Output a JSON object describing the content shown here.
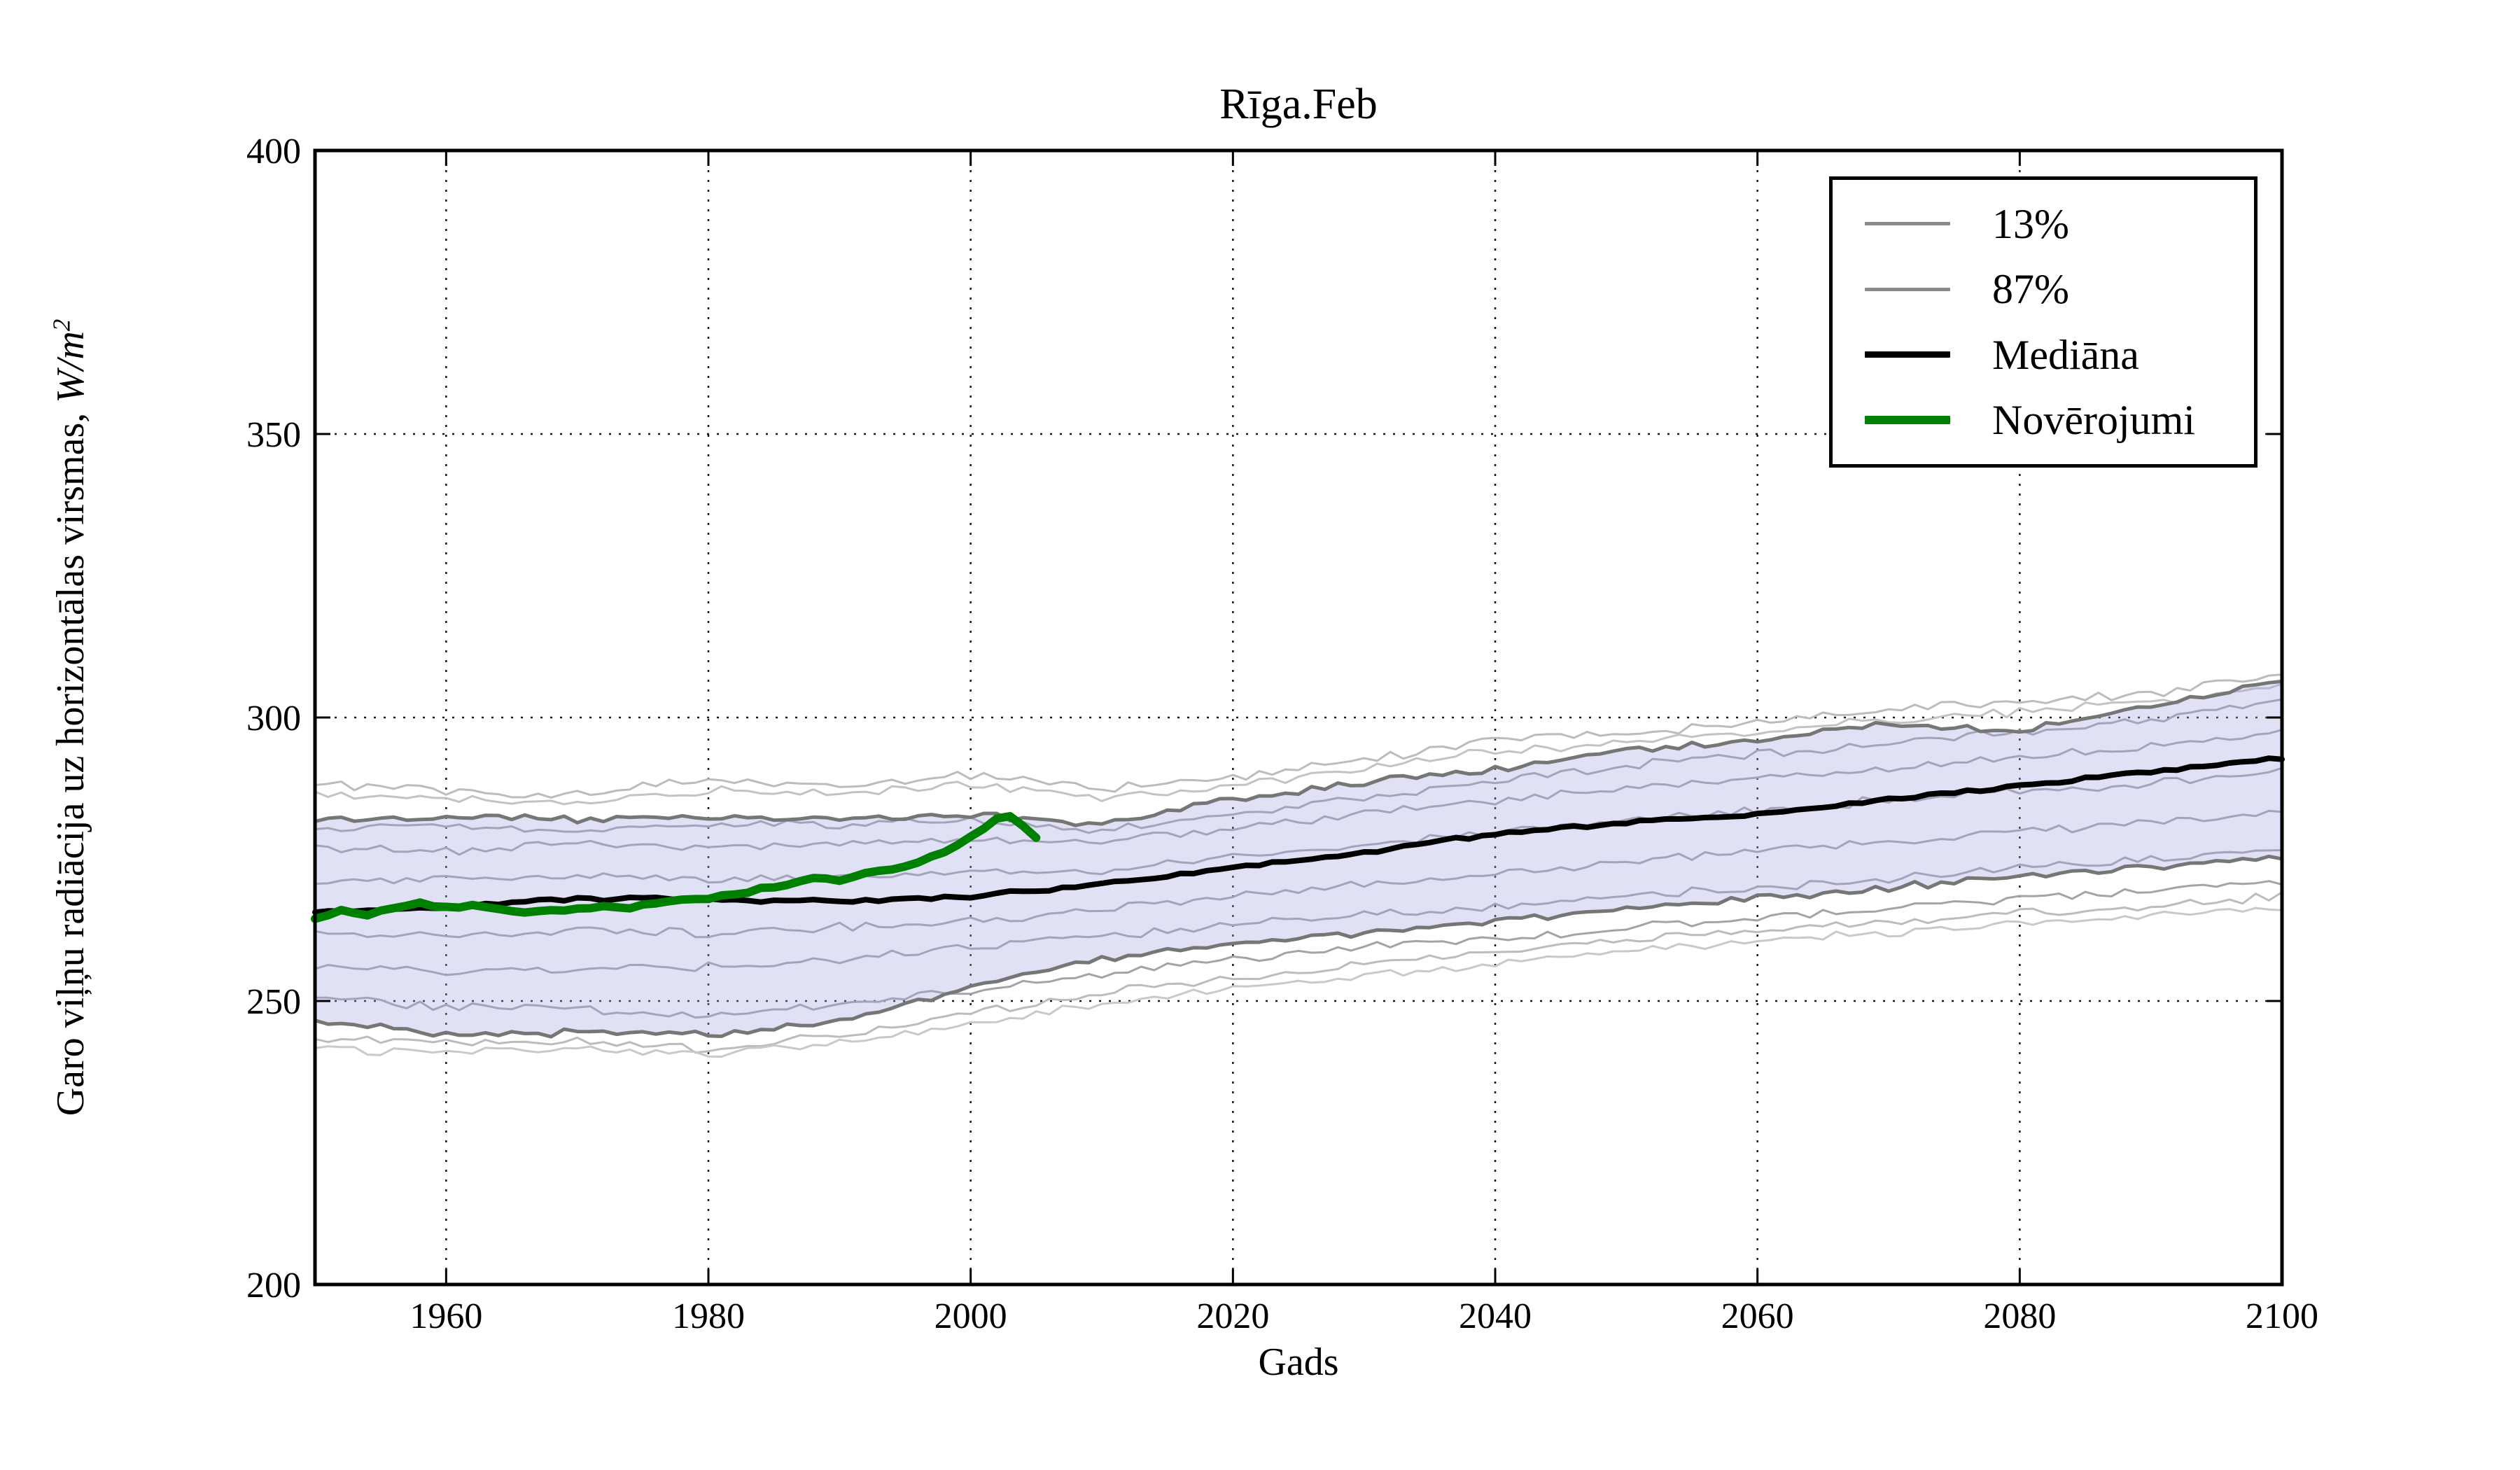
{
  "chart_data": {
    "type": "line",
    "title": "Rīga.Feb",
    "xlabel": "Gads",
    "ylabel": "Garo viļņu radiācija uz horizontālas virsmas, W/m2",
    "ylabel_text": "Garo viļņu radiācija uz horizontālas virsmas, ",
    "ylabel_unit": "W/m",
    "ylabel_exponent": "2",
    "xlim": [
      1950,
      2100
    ],
    "ylim": [
      200,
      400
    ],
    "x_ticks": [
      1960,
      1980,
      2000,
      2020,
      2040,
      2060,
      2080,
      2100
    ],
    "y_ticks": [
      200,
      250,
      300,
      350,
      400
    ],
    "grid": true,
    "legend_position": "upper right",
    "band": {
      "between": [
        "13%",
        "87%"
      ],
      "fill_color": "#a5a5e0",
      "fill_opacity": 0.33
    },
    "anchor_years": [
      1950,
      1960,
      1970,
      1980,
      1990,
      2000,
      2010,
      2020,
      2030,
      2040,
      2050,
      2060,
      2070,
      2080,
      2090,
      2100
    ],
    "series": [
      {
        "name": "ensemble-member-1",
        "role": "ensemble",
        "color": "#bcbcbc",
        "linewidth": 3,
        "jitter": 1.2,
        "values": [
          288.5,
          287,
          286.5,
          289,
          288,
          290,
          287.5,
          289.5,
          292.5,
          296,
          297,
          299,
          301.5,
          303,
          304,
          307.5
        ]
      },
      {
        "name": "ensemble-member-2",
        "role": "ensemble",
        "color": "#c3c3c3",
        "linewidth": 3,
        "jitter": 1.2,
        "values": [
          286.5,
          285.5,
          285,
          287,
          286.5,
          288,
          286,
          288,
          291,
          294,
          295.5,
          297.5,
          299.5,
          301,
          302.5,
          305.5
        ]
      },
      {
        "name": "ensemble-member-3",
        "role": "ensemble",
        "color": "#a3a3ab",
        "linewidth": 3,
        "jitter": 1.2,
        "values": [
          280.5,
          281,
          280,
          281.5,
          281,
          282,
          280,
          283,
          286,
          289,
          291.5,
          293.5,
          295.5,
          297.5,
          299.5,
          303
        ]
      },
      {
        "name": "ensemble-member-4",
        "role": "ensemble",
        "color": "#a3a3ab",
        "linewidth": 3,
        "jitter": 1.2,
        "values": [
          277,
          276.5,
          277.5,
          277,
          277.5,
          278.5,
          278,
          280.5,
          283,
          285.5,
          287.5,
          289.5,
          291,
          293,
          295,
          297.5
        ]
      },
      {
        "name": "ensemble-member-5",
        "role": "ensemble",
        "color": "#a3a3ab",
        "linewidth": 3,
        "jitter": 1.2,
        "values": [
          271,
          271.5,
          272,
          271.5,
          272,
          272.5,
          273,
          275.5,
          277.5,
          280,
          282,
          283.5,
          285.5,
          287,
          288.5,
          290.5
        ]
      },
      {
        "name": "ensemble-member-6",
        "role": "ensemble",
        "color": "#a3a3ab",
        "linewidth": 3,
        "jitter": 1.2,
        "values": [
          262,
          261.5,
          262.5,
          262,
          263,
          264,
          266,
          268.5,
          270.5,
          272.5,
          274.5,
          276.5,
          278,
          280,
          281.5,
          283.5
        ]
      },
      {
        "name": "ensemble-member-7",
        "role": "ensemble",
        "color": "#a3a3ab",
        "linewidth": 3,
        "jitter": 1.2,
        "values": [
          256,
          255,
          255.5,
          256,
          257.5,
          259.5,
          261.5,
          263.5,
          265,
          266.5,
          268.5,
          270,
          271.5,
          273.5,
          275,
          276.5
        ]
      },
      {
        "name": "ensemble-member-8",
        "role": "ensemble",
        "color": "#a3a3ab",
        "linewidth": 3,
        "jitter": 1.2,
        "values": [
          250.5,
          249,
          248.5,
          247.5,
          249.5,
          252,
          255,
          257.5,
          259.5,
          261,
          263,
          264.5,
          266.5,
          268,
          269.5,
          271
        ]
      },
      {
        "name": "ensemble-member-9",
        "role": "ensemble",
        "color": "#bcbcbc",
        "linewidth": 3,
        "jitter": 1.2,
        "values": [
          243.5,
          242.5,
          243,
          241.5,
          244,
          248,
          251.5,
          254,
          256.5,
          258.5,
          261,
          262.5,
          264,
          265.5,
          266.5,
          268.5
        ]
      },
      {
        "name": "ensemble-member-10",
        "role": "ensemble",
        "color": "#c9c9c9",
        "linewidth": 3,
        "jitter": 1.2,
        "values": [
          241.5,
          241,
          241.5,
          240.5,
          242.5,
          246,
          249.5,
          252,
          254.5,
          256.5,
          259,
          260.5,
          262,
          263.5,
          265,
          266.5
        ]
      },
      {
        "name": "13%",
        "role": "band-lower",
        "color": "#767676",
        "linewidth": 5,
        "jitter": 1.0,
        "values": [
          246.5,
          244,
          244.5,
          244,
          246.5,
          252.5,
          257.5,
          260,
          262,
          264,
          266.5,
          268,
          270,
          272,
          273.5,
          275
        ]
      },
      {
        "name": "87%",
        "role": "band-upper",
        "color": "#767676",
        "linewidth": 5,
        "jitter": 1.0,
        "values": [
          282,
          282.5,
          282,
          282.5,
          282,
          283,
          281,
          285.5,
          288.5,
          291,
          294,
          296,
          299,
          297.5,
          302,
          306.5
        ]
      },
      {
        "name": "Mediāna",
        "role": "median",
        "color": "#000000",
        "linewidth": 8,
        "jitter": 0.5,
        "values": [
          265.5,
          266.5,
          268,
          268,
          267.5,
          268.5,
          270.5,
          273.5,
          276,
          279.5,
          281.5,
          283,
          285.5,
          288,
          290.5,
          293
        ]
      },
      {
        "name": "Novērojumi",
        "role": "observations",
        "color": "#008000",
        "linewidth": 12,
        "jitter": 0.35,
        "years": [
          1950,
          1952,
          1954,
          1956,
          1958,
          1960,
          1962,
          1964,
          1966,
          1968,
          1970,
          1972,
          1974,
          1976,
          1978,
          1980,
          1982,
          1984,
          1986,
          1988,
          1990,
          1992,
          1994,
          1996,
          1998,
          2000,
          2002,
          2003,
          2004,
          2005
        ],
        "values": [
          264.5,
          265.8,
          265.2,
          266.3,
          267.2,
          266.4,
          266.8,
          266.0,
          265.6,
          265.9,
          266.3,
          266.8,
          266.5,
          267.2,
          267.8,
          268.2,
          268.8,
          269.8,
          270.6,
          271.6,
          271.2,
          272.6,
          273.0,
          274.6,
          276.2,
          278.8,
          282.3,
          282.5,
          281.0,
          278.8
        ]
      }
    ],
    "legend": [
      {
        "label": "13%",
        "color": "#8a8a8a",
        "linewidth": 5
      },
      {
        "label": "87%",
        "color": "#8a8a8a",
        "linewidth": 5
      },
      {
        "label": "Mediāna",
        "color": "#000000",
        "linewidth": 9
      },
      {
        "label": "Novērojumi",
        "color": "#008000",
        "linewidth": 12
      }
    ]
  }
}
